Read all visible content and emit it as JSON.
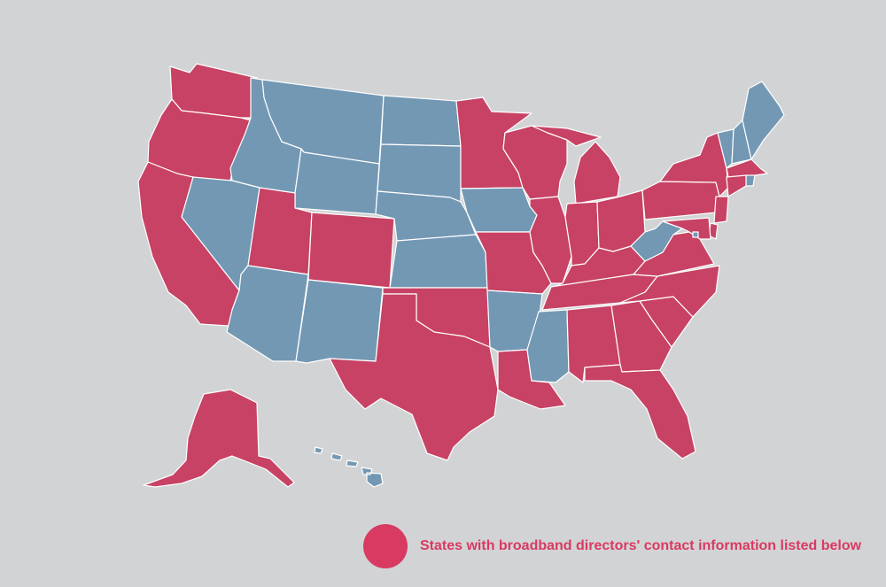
{
  "colors": {
    "background": "#d2d3d5",
    "listed": "#c74264",
    "not_listed": "#7398b4",
    "legend_text": "#d93a62",
    "border": "#ffffff"
  },
  "legend": {
    "label": "States with broadband directors' contact information listed below",
    "color": "#d93a62"
  },
  "states": [
    {
      "code": "WA",
      "listed": true
    },
    {
      "code": "OR",
      "listed": true
    },
    {
      "code": "CA",
      "listed": true
    },
    {
      "code": "ID",
      "listed": false
    },
    {
      "code": "NV",
      "listed": false
    },
    {
      "code": "MT",
      "listed": false
    },
    {
      "code": "WY",
      "listed": false
    },
    {
      "code": "UT",
      "listed": true
    },
    {
      "code": "AZ",
      "listed": false
    },
    {
      "code": "CO",
      "listed": true
    },
    {
      "code": "NM",
      "listed": false
    },
    {
      "code": "ND",
      "listed": false
    },
    {
      "code": "SD",
      "listed": false
    },
    {
      "code": "NE",
      "listed": false
    },
    {
      "code": "KS",
      "listed": false
    },
    {
      "code": "OK",
      "listed": true
    },
    {
      "code": "TX",
      "listed": true
    },
    {
      "code": "MN",
      "listed": true
    },
    {
      "code": "IA",
      "listed": false
    },
    {
      "code": "MO",
      "listed": true
    },
    {
      "code": "AR",
      "listed": false
    },
    {
      "code": "LA",
      "listed": true
    },
    {
      "code": "WI",
      "listed": true
    },
    {
      "code": "IL",
      "listed": true
    },
    {
      "code": "MS",
      "listed": false
    },
    {
      "code": "MI",
      "listed": true
    },
    {
      "code": "IN",
      "listed": true
    },
    {
      "code": "KY",
      "listed": true
    },
    {
      "code": "TN",
      "listed": true
    },
    {
      "code": "AL",
      "listed": true
    },
    {
      "code": "OH",
      "listed": true
    },
    {
      "code": "GA",
      "listed": true
    },
    {
      "code": "FL",
      "listed": true
    },
    {
      "code": "SC",
      "listed": true
    },
    {
      "code": "NC",
      "listed": true
    },
    {
      "code": "VA",
      "listed": true
    },
    {
      "code": "WV",
      "listed": false
    },
    {
      "code": "PA",
      "listed": true
    },
    {
      "code": "NY",
      "listed": true
    },
    {
      "code": "VT",
      "listed": false
    },
    {
      "code": "NH",
      "listed": false
    },
    {
      "code": "ME",
      "listed": false
    },
    {
      "code": "MA",
      "listed": true
    },
    {
      "code": "RI",
      "listed": false
    },
    {
      "code": "CT",
      "listed": true
    },
    {
      "code": "NJ",
      "listed": true
    },
    {
      "code": "DE",
      "listed": true
    },
    {
      "code": "MD",
      "listed": true
    },
    {
      "code": "DC",
      "listed": false
    },
    {
      "code": "AK",
      "listed": true
    },
    {
      "code": "HI",
      "listed": false
    }
  ]
}
